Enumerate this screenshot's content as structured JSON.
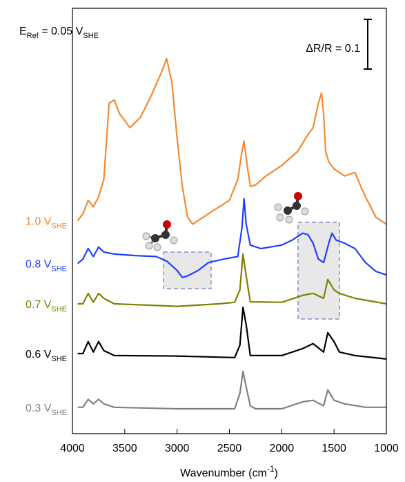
{
  "chart_data": {
    "type": "line",
    "xlabel": {
      "text": "Wavenumber (cm",
      "sup": "-1",
      "end": ")"
    },
    "annotation": {
      "main": "E",
      "sub": "Ref",
      "mid": " = 0.05 V",
      "sub2": "SHE"
    },
    "scale_bar": {
      "label": "ΔR/R = 0.1",
      "value": 0.1
    },
    "xlim": [
      4000,
      1000
    ],
    "xticks": [
      4000,
      3500,
      3000,
      2500,
      2000,
      1500,
      1000
    ],
    "ylim": [
      0,
      0.855
    ],
    "series": [
      {
        "name": "1.0 V",
        "sub": "SHE",
        "color": "#f28a30",
        "x": [
          3950,
          3900,
          3850,
          3800,
          3750,
          3700,
          3650,
          3600,
          3550,
          3450,
          3350,
          3250,
          3150,
          3100,
          3050,
          3000,
          2950,
          2900,
          2850,
          2800,
          2650,
          2500,
          2420,
          2380,
          2360,
          2330,
          2300,
          2250,
          2150,
          2000,
          1850,
          1750,
          1700,
          1650,
          1620,
          1600,
          1580,
          1550,
          1500,
          1400,
          1300,
          1250,
          1200,
          1150,
          1100,
          1050,
          1000
        ],
        "values": [
          0.428,
          0.442,
          0.469,
          0.456,
          0.476,
          0.511,
          0.664,
          0.671,
          0.643,
          0.615,
          0.636,
          0.678,
          0.726,
          0.754,
          0.706,
          0.594,
          0.497,
          0.435,
          0.421,
          0.428,
          0.449,
          0.469,
          0.511,
          0.567,
          0.588,
          0.539,
          0.497,
          0.5,
          0.518,
          0.539,
          0.567,
          0.601,
          0.615,
          0.664,
          0.685,
          0.643,
          0.567,
          0.546,
          0.532,
          0.518,
          0.525,
          0.5,
          0.476,
          0.456,
          0.435,
          0.428,
          0.421
        ]
      },
      {
        "name": "0.8 V",
        "sub": "SHE",
        "color": "#1f3fff",
        "x": [
          3950,
          3900,
          3850,
          3800,
          3750,
          3700,
          3600,
          3400,
          3200,
          3100,
          3000,
          2950,
          2900,
          2800,
          2700,
          2550,
          2420,
          2380,
          2360,
          2340,
          2300,
          2200,
          2000,
          1900,
          1800,
          1750,
          1700,
          1650,
          1600,
          1550,
          1520,
          1480,
          1400,
          1300,
          1250,
          1200,
          1100,
          1000
        ],
        "values": [
          0.342,
          0.351,
          0.372,
          0.356,
          0.375,
          0.365,
          0.361,
          0.358,
          0.356,
          0.347,
          0.328,
          0.314,
          0.317,
          0.328,
          0.344,
          0.351,
          0.356,
          0.414,
          0.472,
          0.421,
          0.379,
          0.372,
          0.379,
          0.389,
          0.403,
          0.4,
          0.383,
          0.351,
          0.344,
          0.383,
          0.403,
          0.389,
          0.383,
          0.372,
          0.358,
          0.344,
          0.326,
          0.319
        ]
      },
      {
        "name": "0.7 V",
        "sub": "SHE",
        "color": "#808000",
        "x": [
          3950,
          3900,
          3850,
          3800,
          3750,
          3700,
          3600,
          3000,
          2600,
          2450,
          2400,
          2370,
          2340,
          2300,
          2000,
          1800,
          1700,
          1600,
          1560,
          1500,
          1450,
          1300,
          1000
        ],
        "values": [
          0.261,
          0.261,
          0.282,
          0.264,
          0.282,
          0.272,
          0.261,
          0.256,
          0.261,
          0.264,
          0.289,
          0.361,
          0.317,
          0.265,
          0.264,
          0.278,
          0.282,
          0.272,
          0.31,
          0.289,
          0.282,
          0.272,
          0.261
        ]
      },
      {
        "name": "0.6 V",
        "sub": "SHE",
        "color": "#000000",
        "x": [
          3950,
          3900,
          3850,
          3800,
          3750,
          3700,
          3600,
          3000,
          2450,
          2400,
          2370,
          2340,
          2300,
          2000,
          1800,
          1700,
          1600,
          1560,
          1500,
          1450,
          1300,
          1000
        ],
        "values": [
          0.161,
          0.161,
          0.185,
          0.164,
          0.185,
          0.167,
          0.157,
          0.156,
          0.153,
          0.178,
          0.254,
          0.219,
          0.157,
          0.157,
          0.171,
          0.181,
          0.164,
          0.203,
          0.185,
          0.164,
          0.157,
          0.15
        ]
      },
      {
        "name": "0.3 V",
        "sub": "SHE",
        "color": "#808080",
        "x": [
          3950,
          3900,
          3850,
          3800,
          3750,
          3700,
          3600,
          3000,
          2450,
          2400,
          2370,
          2340,
          2300,
          2250,
          2000,
          1800,
          1700,
          1600,
          1560,
          1500,
          1400,
          1200,
          1000
        ],
        "values": [
          0.053,
          0.053,
          0.069,
          0.06,
          0.069,
          0.06,
          0.053,
          0.05,
          0.05,
          0.081,
          0.125,
          0.094,
          0.056,
          0.05,
          0.05,
          0.064,
          0.067,
          0.056,
          0.088,
          0.067,
          0.06,
          0.053,
          0.053
        ]
      }
    ]
  }
}
